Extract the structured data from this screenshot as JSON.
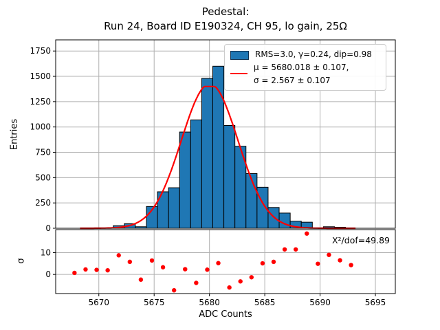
{
  "title": {
    "line1": "Pedestal:",
    "line2": "Run 24, Board ID E190324, CH 95, lo gain, 25Ω"
  },
  "colors": {
    "bar_fill": "#1f77b4",
    "bar_edge": "#000000",
    "fit_line": "#ff0000",
    "residual_dot": "#ff0000",
    "grid": "#b0b0b0",
    "axis": "#000000",
    "text": "#000000",
    "background": "#ffffff"
  },
  "chart_data": [
    {
      "panel": "main",
      "type": "histogram",
      "ylabel": "Entries",
      "ylim": [
        0,
        1860
      ],
      "yticks": [
        0,
        250,
        500,
        750,
        1000,
        1250,
        1500,
        1750
      ],
      "xlim": [
        5666.1,
        5696.8
      ],
      "xticks": [
        5670,
        5675,
        5680,
        5685,
        5690,
        5695
      ],
      "grid": true,
      "bin_width": 1,
      "bin_centers": [
        5671.8,
        5672.8,
        5673.8,
        5674.8,
        5675.8,
        5676.8,
        5677.8,
        5678.8,
        5679.8,
        5680.8,
        5681.8,
        5682.8,
        5683.8,
        5684.8,
        5685.8,
        5686.8,
        5687.8,
        5688.8,
        5689.8,
        5690.8,
        5691.8,
        5692.8
      ],
      "counts": [
        25,
        45,
        15,
        215,
        360,
        400,
        950,
        1070,
        1480,
        1600,
        1015,
        810,
        540,
        405,
        205,
        150,
        70,
        60,
        0,
        15,
        10,
        0
      ],
      "fit_curve": {
        "shape": "gaussian",
        "mu": 5680.018,
        "sigma": 2.567,
        "amplitude": 1427,
        "peak_plateau": 1400,
        "x_start": 5668.3,
        "x_end": 5693.3
      },
      "legend": {
        "items": [
          {
            "swatch": "histogram-patch",
            "label": "RMS=3.0, γ=0.24, dip=0.98"
          },
          {
            "swatch": "fit-line",
            "label_line1": "μ = 5680.018 ± 0.107,",
            "label_line2": "σ = 2.567 ± 0.107"
          }
        ]
      }
    },
    {
      "panel": "residuals",
      "type": "scatter",
      "ylabel": "σ",
      "xlabel": "ADC Counts",
      "ylim": [
        -8.8,
        20.6
      ],
      "yticks": [
        0,
        10
      ],
      "grid": true,
      "annotation": "X²/dof=49.89",
      "x": [
        5667.8,
        5668.8,
        5669.8,
        5670.8,
        5671.8,
        5672.8,
        5673.8,
        5674.8,
        5675.8,
        5676.8,
        5677.8,
        5678.8,
        5679.8,
        5680.8,
        5681.8,
        5682.8,
        5683.8,
        5684.8,
        5685.8,
        5686.8,
        5687.8,
        5688.8,
        5689.8,
        5690.8,
        5691.8,
        5692.8
      ],
      "sigma": [
        0.7,
        2.3,
        2.1,
        1.9,
        8.8,
        5.8,
        -2.4,
        6.4,
        3.3,
        -7.3,
        2.4,
        -3.9,
        2.2,
        5.2,
        -6.0,
        -3.2,
        -1.3,
        5.1,
        5.8,
        11.5,
        11.5,
        18.8,
        4.9,
        9.0,
        6.5,
        4.3
      ]
    }
  ]
}
